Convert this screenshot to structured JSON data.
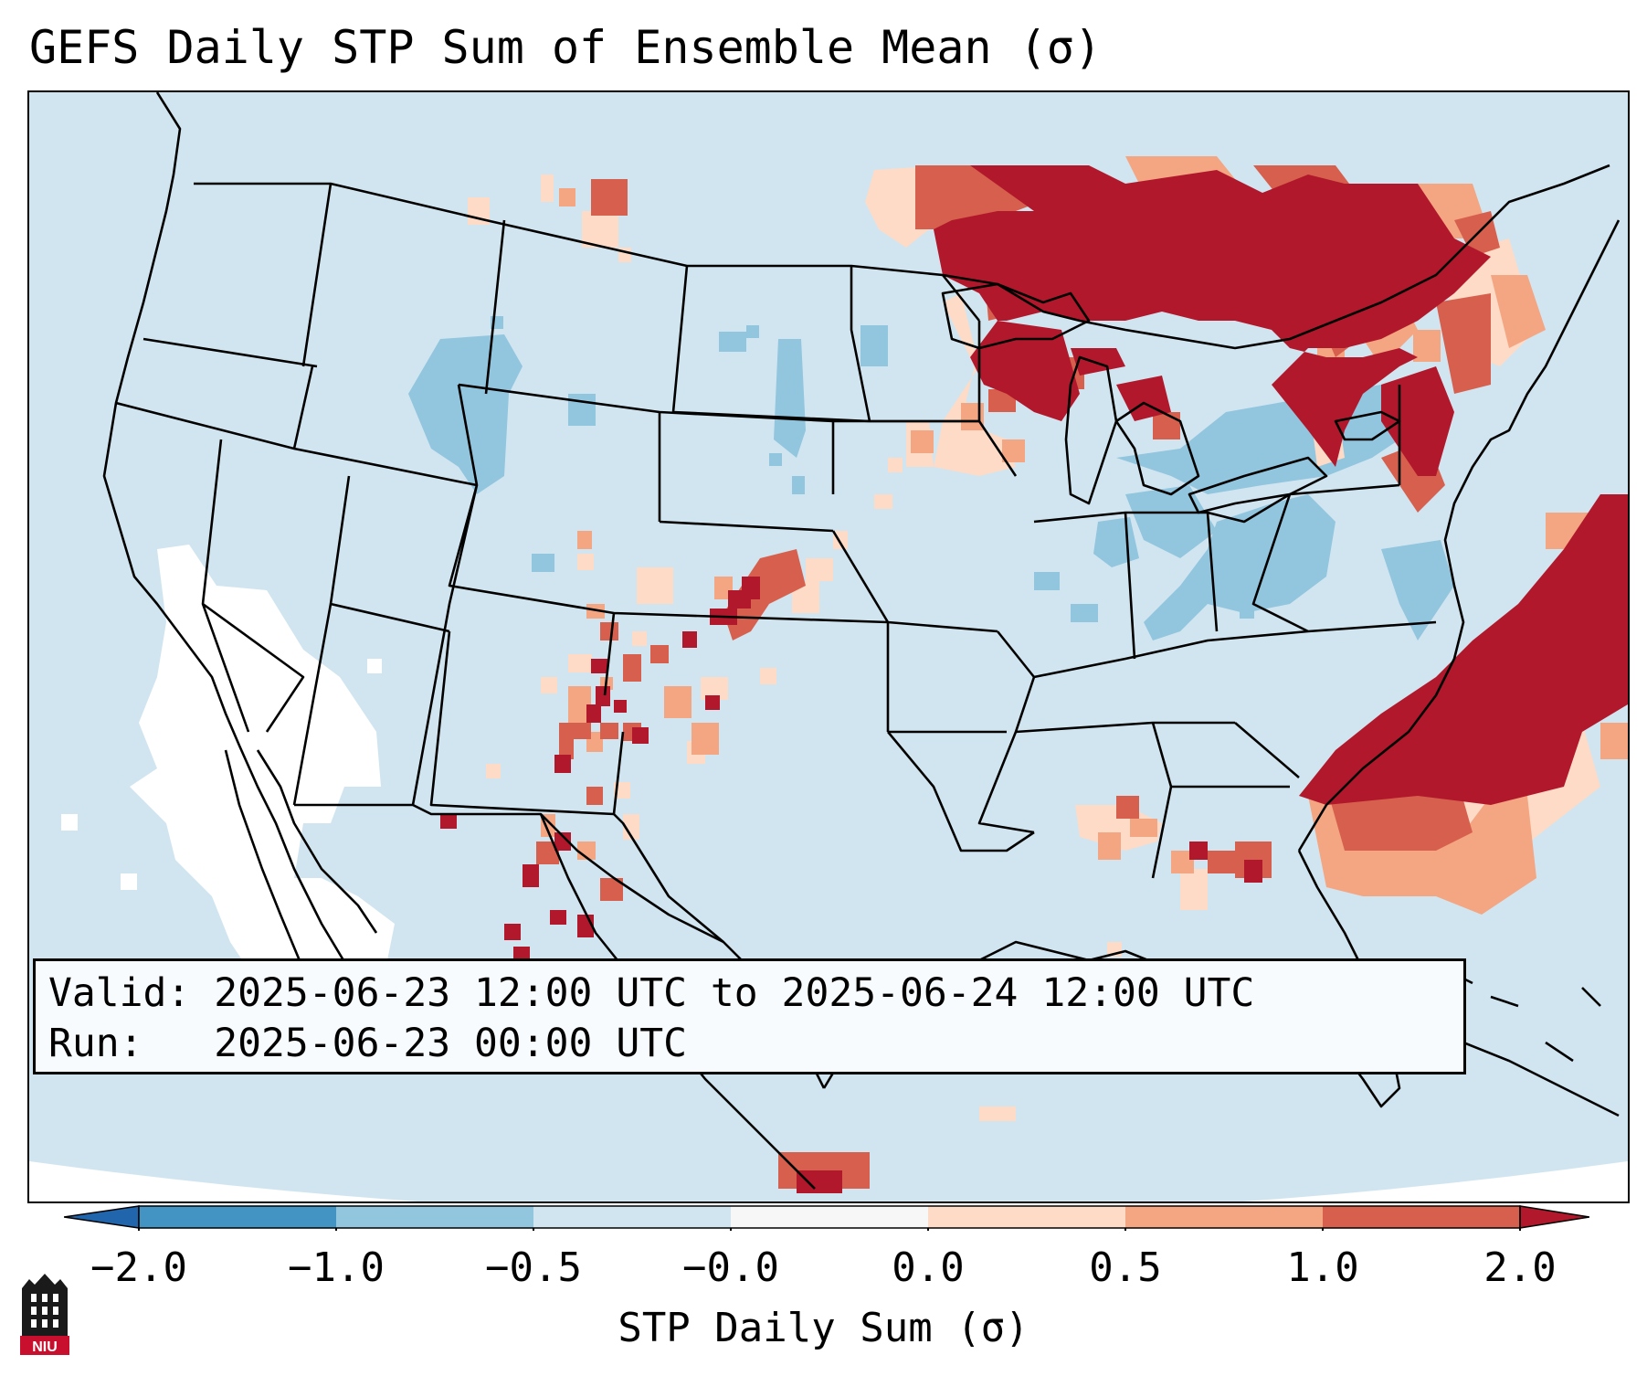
{
  "title": "GEFS Daily STP Sum of Ensemble Mean (σ)",
  "info": {
    "valid_label": "Valid:",
    "valid_value": "2025-06-23 12:00 UTC to 2025-06-24 12:00 UTC",
    "run_label": "Run:",
    "run_value": "2025-06-23 00:00 UTC"
  },
  "colorbar": {
    "label": "STP Daily Sum (σ)",
    "ticks": [
      "−2.0",
      "−1.0",
      "−0.5",
      "−0.0",
      "0.0",
      "0.5",
      "1.0",
      "2.0"
    ],
    "colors": [
      "#4393c3",
      "#92c5de",
      "#d1e5f0",
      "#f7f7f7",
      "#fddbc7",
      "#f4a582",
      "#d6604d"
    ],
    "under_color": "#2166ac",
    "over_color": "#b2182b"
  },
  "logo": {
    "text": "NIU"
  },
  "map_colors": {
    "ocean": "#d1e5f0",
    "neutral": "#ffffff",
    "neg_light": "#92c5de",
    "pos_light": "#fddbc7",
    "pos_mid": "#f4a582",
    "pos_strong": "#d6604d",
    "pos_max": "#b2182b"
  }
}
